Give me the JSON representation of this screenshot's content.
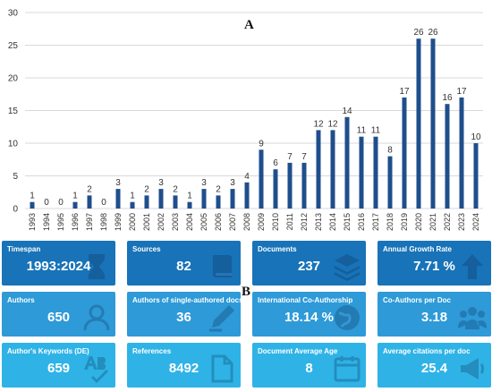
{
  "panel_labels": {
    "a": "A",
    "b": "B"
  },
  "chart_data": {
    "type": "bar",
    "categories": [
      "1993",
      "1994",
      "1995",
      "1996",
      "1997",
      "1998",
      "1999",
      "2000",
      "2001",
      "2002",
      "2003",
      "2004",
      "2005",
      "2006",
      "2007",
      "2008",
      "2009",
      "2010",
      "2011",
      "2012",
      "2013",
      "2014",
      "2015",
      "2016",
      "2017",
      "2018",
      "2019",
      "2020",
      "2021",
      "2022",
      "2023",
      "2024"
    ],
    "values": [
      1,
      0,
      0,
      1,
      2,
      0,
      3,
      1,
      2,
      3,
      2,
      1,
      3,
      2,
      3,
      4,
      9,
      6,
      7,
      7,
      12,
      12,
      14,
      11,
      11,
      8,
      17,
      26,
      26,
      16,
      17,
      10
    ],
    "ylim": [
      0,
      30
    ],
    "yticks": [
      0,
      5,
      10,
      15,
      20,
      25,
      30
    ],
    "grid": true,
    "bar_color": "#1f4e8c",
    "title": "",
    "xlabel": "",
    "ylabel": ""
  },
  "cards": [
    {
      "title": "Timespan",
      "value": "1993:2024",
      "icon": "hourglass-icon"
    },
    {
      "title": "Sources",
      "value": "82",
      "icon": "book-icon"
    },
    {
      "title": "Documents",
      "value": "237",
      "icon": "layers-icon"
    },
    {
      "title": "Annual Growth Rate",
      "value": "7.71 %",
      "icon": "arrow-up-icon"
    },
    {
      "title": "Authors",
      "value": "650",
      "icon": "person-icon"
    },
    {
      "title": "Authors of single-authored docs",
      "value": "36",
      "icon": "pen-icon"
    },
    {
      "title": "International Co-Authorship",
      "value": "18.14 %",
      "icon": "globe-icon"
    },
    {
      "title": "Co-Authors per Doc",
      "value": "3.18",
      "icon": "group-icon"
    },
    {
      "title": "Author's Keywords (DE)",
      "value": "659",
      "icon": "keywords-icon"
    },
    {
      "title": "References",
      "value": "8492",
      "icon": "document-icon"
    },
    {
      "title": "Document Average Age",
      "value": "8",
      "icon": "calendar-icon"
    },
    {
      "title": "Average citations per doc",
      "value": "25.4",
      "icon": "megaphone-icon"
    }
  ],
  "colors": {
    "row_1": "#1873b8",
    "row_2": "#2e9ad8",
    "row_3": "#2fb3e6"
  }
}
